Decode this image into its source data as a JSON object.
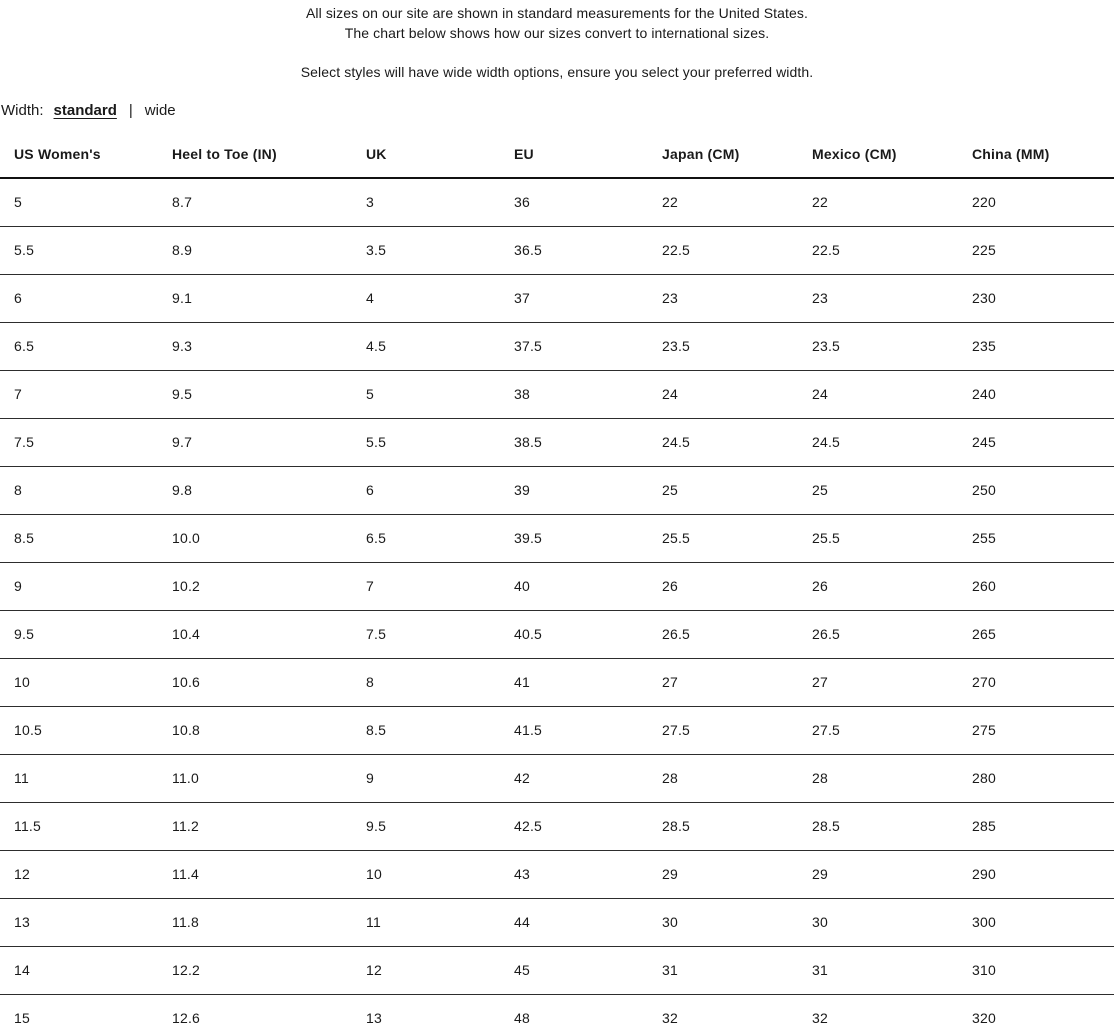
{
  "intro": {
    "line1": "All sizes on our site are shown in standard measurements for the United States.",
    "line2": "The chart below shows how our sizes convert to international sizes.",
    "line3": "Select styles will have wide width options, ensure you select your preferred width."
  },
  "width_selector": {
    "label": "Width:",
    "separator": "|",
    "options": [
      {
        "label": "standard",
        "selected": true
      },
      {
        "label": "wide",
        "selected": false
      }
    ]
  },
  "table": {
    "columns": [
      "US Women's",
      "Heel to Toe (IN)",
      "UK",
      "EU",
      "Japan (CM)",
      "Mexico (CM)",
      "China (MM)"
    ],
    "rows": [
      [
        "5",
        "8.7",
        "3",
        "36",
        "22",
        "22",
        "220"
      ],
      [
        "5.5",
        "8.9",
        "3.5",
        "36.5",
        "22.5",
        "22.5",
        "225"
      ],
      [
        "6",
        "9.1",
        "4",
        "37",
        "23",
        "23",
        "230"
      ],
      [
        "6.5",
        "9.3",
        "4.5",
        "37.5",
        "23.5",
        "23.5",
        "235"
      ],
      [
        "7",
        "9.5",
        "5",
        "38",
        "24",
        "24",
        "240"
      ],
      [
        "7.5",
        "9.7",
        "5.5",
        "38.5",
        "24.5",
        "24.5",
        "245"
      ],
      [
        "8",
        "9.8",
        "6",
        "39",
        "25",
        "25",
        "250"
      ],
      [
        "8.5",
        "10.0",
        "6.5",
        "39.5",
        "25.5",
        "25.5",
        "255"
      ],
      [
        "9",
        "10.2",
        "7",
        "40",
        "26",
        "26",
        "260"
      ],
      [
        "9.5",
        "10.4",
        "7.5",
        "40.5",
        "26.5",
        "26.5",
        "265"
      ],
      [
        "10",
        "10.6",
        "8",
        "41",
        "27",
        "27",
        "270"
      ],
      [
        "10.5",
        "10.8",
        "8.5",
        "41.5",
        "27.5",
        "27.5",
        "275"
      ],
      [
        "11",
        "11.0",
        "9",
        "42",
        "28",
        "28",
        "280"
      ],
      [
        "11.5",
        "11.2",
        "9.5",
        "42.5",
        "28.5",
        "28.5",
        "285"
      ],
      [
        "12",
        "11.4",
        "10",
        "43",
        "29",
        "29",
        "290"
      ],
      [
        "13",
        "11.8",
        "11",
        "44",
        "30",
        "30",
        "300"
      ],
      [
        "14",
        "12.2",
        "12",
        "45",
        "31",
        "31",
        "310"
      ],
      [
        "15",
        "12.6",
        "13",
        "48",
        "32",
        "32",
        "320"
      ]
    ]
  },
  "colors": {
    "text": "#1a1a1a",
    "header_border": "#111111",
    "row_border": "#2d2d2d",
    "background": "#ffffff"
  }
}
